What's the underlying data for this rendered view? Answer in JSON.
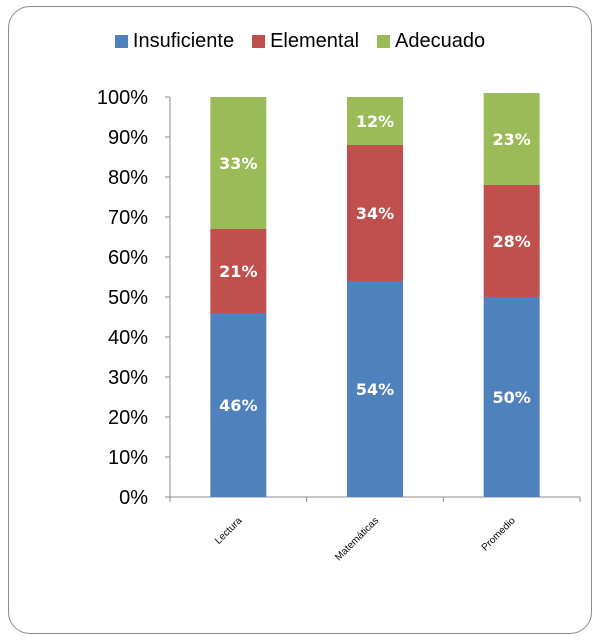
{
  "chart_data": {
    "type": "bar",
    "stacked": true,
    "categories": [
      "Lectura",
      "Matemáticas",
      "Promedio"
    ],
    "series": [
      {
        "name": "Insuficiente",
        "values": [
          46,
          54,
          50
        ],
        "color": "#4f81bd"
      },
      {
        "name": "Elemental",
        "values": [
          21,
          34,
          28
        ],
        "color": "#c0504d"
      },
      {
        "name": "Adecuado",
        "values": [
          33,
          12,
          23
        ],
        "color": "#9bbb59"
      }
    ],
    "data_labels": [
      [
        "46%",
        "54%",
        "50%"
      ],
      [
        "21%",
        "34%",
        "28%"
      ],
      [
        "33%",
        "12%",
        "23%"
      ]
    ],
    "yticks": [
      "0%",
      "10%",
      "20%",
      "30%",
      "40%",
      "50%",
      "60%",
      "70%",
      "80%",
      "90%",
      "100%"
    ],
    "ylim": [
      0,
      100
    ],
    "legend_position": "top",
    "grid": false
  }
}
